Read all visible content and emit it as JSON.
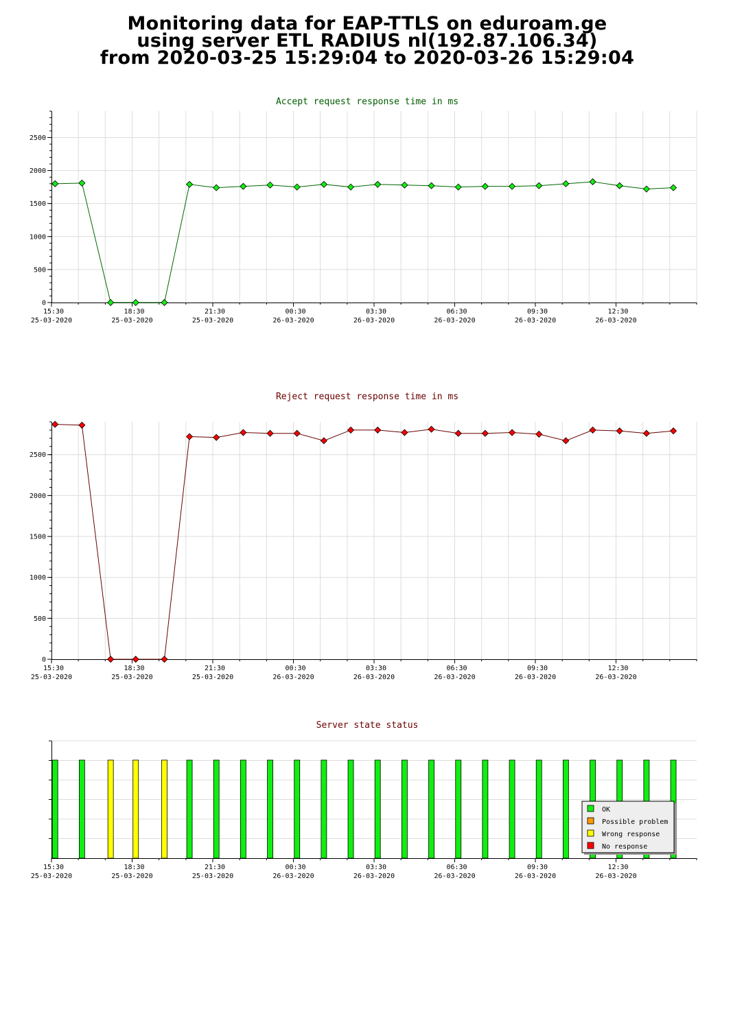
{
  "page_title": {
    "line1": "Monitoring data for EAP-TTLS on eduroam.ge",
    "line2": "using server ETL RADIUS nl(192.87.106.34)",
    "line3": "from 2020-03-25 15:29:04 to 2020-03-26 15:29:04"
  },
  "colors": {
    "accept_title": "#005a00",
    "reject_title": "#6a0000",
    "state_title": "#6a0000",
    "ok": "#11ee11",
    "possible_problem": "#ff9900",
    "wrong_response": "#ffff00",
    "no_response": "#ff0000"
  },
  "x_ticks": [
    {
      "time": "15:30",
      "date": "25-03-2020"
    },
    {
      "time": "18:30",
      "date": "25-03-2020"
    },
    {
      "time": "21:30",
      "date": "25-03-2020"
    },
    {
      "time": "00:30",
      "date": "26-03-2020"
    },
    {
      "time": "03:30",
      "date": "26-03-2020"
    },
    {
      "time": "06:30",
      "date": "26-03-2020"
    },
    {
      "time": "09:30",
      "date": "26-03-2020"
    },
    {
      "time": "12:30",
      "date": "26-03-2020"
    }
  ],
  "chart_data": [
    {
      "type": "line",
      "title": "Accept request response time in ms",
      "xlim": [
        "2020-03-25 15:30",
        "2020-03-26 15:30"
      ],
      "ylim": [
        0,
        2900
      ],
      "yticks": [
        0,
        500,
        1000,
        1500,
        2000,
        2500
      ],
      "grid": true,
      "x": [
        "2020-03-25 15:38",
        "2020-03-25 16:38",
        "2020-03-25 17:42",
        "2020-03-25 18:38",
        "2020-03-25 19:42",
        "2020-03-25 20:38",
        "2020-03-25 21:38",
        "2020-03-25 22:38",
        "2020-03-25 23:38",
        "2020-03-26 00:38",
        "2020-03-26 01:38",
        "2020-03-26 02:38",
        "2020-03-26 03:38",
        "2020-03-26 04:38",
        "2020-03-26 05:38",
        "2020-03-26 06:38",
        "2020-03-26 07:38",
        "2020-03-26 08:38",
        "2020-03-26 09:38",
        "2020-03-26 10:38",
        "2020-03-26 11:38",
        "2020-03-26 12:38",
        "2020-03-26 13:38",
        "2020-03-26 14:38"
      ],
      "series": [
        {
          "values": [
            1800,
            1810,
            0,
            0,
            0,
            1790,
            1740,
            1760,
            1780,
            1750,
            1790,
            1750,
            1790,
            1780,
            1770,
            1750,
            1760,
            1760,
            1770,
            1800,
            1830,
            1770,
            1720,
            1740
          ]
        }
      ]
    },
    {
      "type": "line",
      "title": "Reject request response time in ms",
      "xlim": [
        "2020-03-25 15:30",
        "2020-03-26 15:30"
      ],
      "ylim": [
        0,
        2900
      ],
      "yticks": [
        0,
        500,
        1000,
        1500,
        2000,
        2500
      ],
      "grid": true,
      "x": [
        "2020-03-25 15:38",
        "2020-03-25 16:38",
        "2020-03-25 17:42",
        "2020-03-25 18:38",
        "2020-03-25 19:42",
        "2020-03-25 20:38",
        "2020-03-25 21:38",
        "2020-03-25 22:38",
        "2020-03-25 23:38",
        "2020-03-26 00:38",
        "2020-03-26 01:38",
        "2020-03-26 02:38",
        "2020-03-26 03:38",
        "2020-03-26 04:38",
        "2020-03-26 05:38",
        "2020-03-26 06:38",
        "2020-03-26 07:38",
        "2020-03-26 08:38",
        "2020-03-26 09:38",
        "2020-03-26 10:38",
        "2020-03-26 11:38",
        "2020-03-26 12:38",
        "2020-03-26 13:38",
        "2020-03-26 14:38"
      ],
      "series": [
        {
          "values": [
            2870,
            2860,
            0,
            0,
            0,
            2720,
            2710,
            2770,
            2760,
            2760,
            2670,
            2800,
            2800,
            2770,
            2810,
            2760,
            2760,
            2770,
            2750,
            2670,
            2800,
            2790,
            2760,
            2790
          ]
        }
      ]
    },
    {
      "type": "bar",
      "title": "Server state status",
      "xlim": [
        "2020-03-25 15:30",
        "2020-03-26 15:30"
      ],
      "legend": "bottom-right",
      "legend_entries": [
        {
          "label": "OK",
          "color": "#11ee11"
        },
        {
          "label": "Possible problem",
          "color": "#ff9900"
        },
        {
          "label": "Wrong response",
          "color": "#ffff00"
        },
        {
          "label": "No response",
          "color": "#ff0000"
        }
      ],
      "x": [
        "2020-03-25 15:38",
        "2020-03-25 16:38",
        "2020-03-25 17:42",
        "2020-03-25 18:38",
        "2020-03-25 19:42",
        "2020-03-25 20:38",
        "2020-03-25 21:38",
        "2020-03-25 22:38",
        "2020-03-25 23:38",
        "2020-03-26 00:38",
        "2020-03-26 01:38",
        "2020-03-26 02:38",
        "2020-03-26 03:38",
        "2020-03-26 04:38",
        "2020-03-26 05:38",
        "2020-03-26 06:38",
        "2020-03-26 07:38",
        "2020-03-26 08:38",
        "2020-03-26 09:38",
        "2020-03-26 10:38",
        "2020-03-26 11:38",
        "2020-03-26 12:38",
        "2020-03-26 13:38",
        "2020-03-26 14:38"
      ],
      "states": [
        "OK",
        "OK",
        "Wrong response",
        "Wrong response",
        "Wrong response",
        "OK",
        "OK",
        "OK",
        "OK",
        "OK",
        "OK",
        "OK",
        "OK",
        "OK",
        "OK",
        "OK",
        "OK",
        "OK",
        "OK",
        "OK",
        "OK",
        "OK",
        "OK",
        "OK"
      ]
    }
  ]
}
